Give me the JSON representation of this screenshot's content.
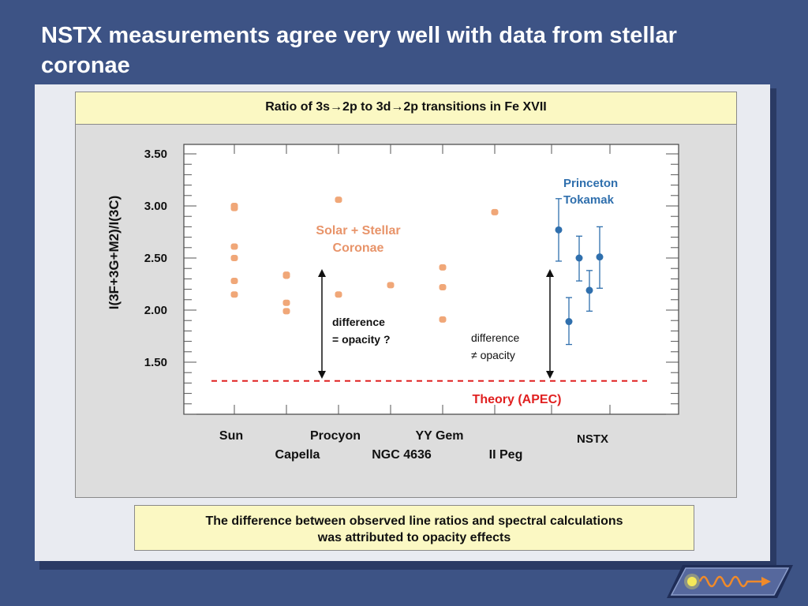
{
  "slide": {
    "title": "NSTX measurements agree very well with data from stellar coronae",
    "caption": {
      "line1": "The difference between observed line ratios and spectral calculations",
      "line2": "was attributed to opacity effects"
    },
    "logo_icon": "wave-arrow-logo-icon"
  },
  "colors": {
    "background": "#3d5385",
    "stellar_points": "#f0a778",
    "stellar_label": "#e8946a",
    "nstx_points": "#2f6fad",
    "theory_line": "#e02020",
    "panel_header": "#fbf8c3"
  },
  "chart_data": {
    "type": "scatter",
    "title": "Ratio of 3s→2p to 3d→2p transitions in Fe XVII",
    "ylabel": "I(3F+3G+M2)/I(3C)",
    "xlabel": "",
    "ylim": [
      1.0,
      3.5
    ],
    "yticks": [
      {
        "value": 3.5,
        "label": "3.50"
      },
      {
        "value": 3.0,
        "label": "3.00"
      },
      {
        "value": 2.5,
        "label": "2.50"
      },
      {
        "value": 2.0,
        "label": "2.00"
      },
      {
        "value": 1.5,
        "label": "1.50"
      }
    ],
    "grid": false,
    "categories": [
      {
        "name": "Sun",
        "label_row": 1
      },
      {
        "name": "Capella",
        "label_row": 2
      },
      {
        "name": "Procyon",
        "label_row": 1
      },
      {
        "name": "NGC 4636",
        "label_row": 2
      },
      {
        "name": "YY Gem",
        "label_row": 1
      },
      {
        "name": "II Peg",
        "label_row": 2
      }
    ],
    "stellar": {
      "label_line1": "Solar + Stellar",
      "label_line2": "Coronae",
      "points": [
        {
          "cat": 0,
          "y": 3.0
        },
        {
          "cat": 0,
          "y": 2.98
        },
        {
          "cat": 0,
          "y": 2.61
        },
        {
          "cat": 0,
          "y": 2.5
        },
        {
          "cat": 0,
          "y": 2.28
        },
        {
          "cat": 0,
          "y": 2.15
        },
        {
          "cat": 1,
          "y": 2.34
        },
        {
          "cat": 1,
          "y": 2.33
        },
        {
          "cat": 1,
          "y": 2.07
        },
        {
          "cat": 1,
          "y": 1.99
        },
        {
          "cat": 2,
          "y": 3.06
        },
        {
          "cat": 2,
          "y": 2.15
        },
        {
          "cat": 3,
          "y": 2.24
        },
        {
          "cat": 4,
          "y": 2.41
        },
        {
          "cat": 4,
          "y": 2.22
        },
        {
          "cat": 4,
          "y": 1.91
        },
        {
          "cat": 5,
          "y": 2.94
        }
      ]
    },
    "nstx": {
      "label": "NSTX",
      "legend_line1": "Princeton",
      "legend_line2": "Tokamak",
      "points": [
        {
          "y": 2.77,
          "lo": 2.47,
          "hi": 3.07
        },
        {
          "y": 1.89,
          "lo": 1.67,
          "hi": 2.12
        },
        {
          "y": 2.5,
          "lo": 2.28,
          "hi": 2.71
        },
        {
          "y": 2.19,
          "lo": 1.99,
          "hi": 2.38
        },
        {
          "y": 2.51,
          "lo": 2.21,
          "hi": 2.8
        }
      ]
    },
    "theory": {
      "label": "Theory (APEC)",
      "y": 1.32
    },
    "annotations": [
      {
        "line1": "difference",
        "line2": "= opacity ?"
      },
      {
        "line1": "difference",
        "line2": "≠ opacity"
      }
    ]
  }
}
